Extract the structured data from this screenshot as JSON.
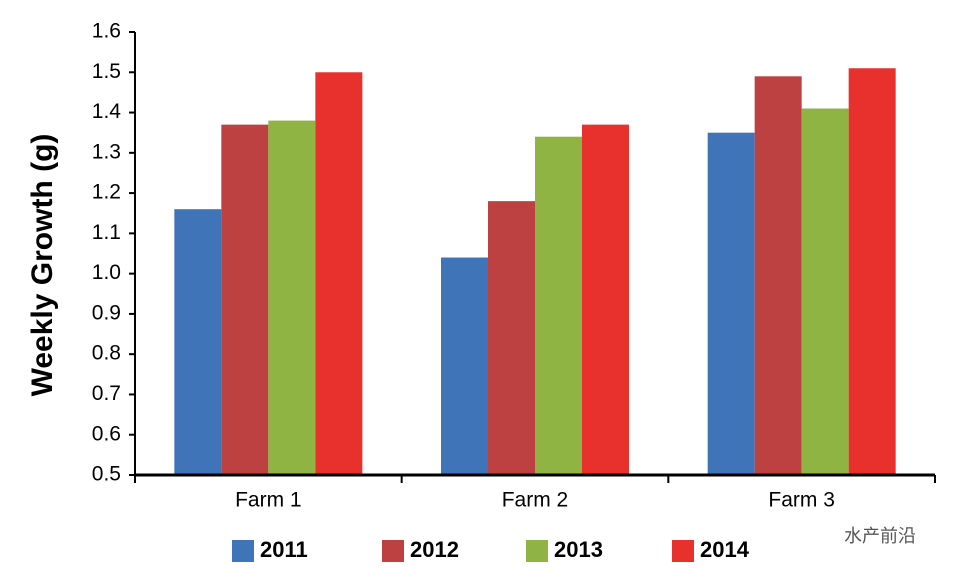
{
  "chart_data": {
    "type": "bar",
    "y_label": "Weekly Growth (g)",
    "categories": [
      "Farm 1",
      "Farm 2",
      "Farm 3"
    ],
    "series": [
      {
        "name": "2011",
        "color": "#3f74b8",
        "values": [
          1.16,
          1.04,
          1.35
        ]
      },
      {
        "name": "2012",
        "color": "#bd4140",
        "values": [
          1.37,
          1.18,
          1.49
        ]
      },
      {
        "name": "2013",
        "color": "#8fb443",
        "values": [
          1.38,
          1.34,
          1.41
        ]
      },
      {
        "name": "2014",
        "color": "#e8302c",
        "values": [
          1.5,
          1.37,
          1.51
        ]
      }
    ],
    "ylim": [
      0.5,
      1.6
    ],
    "yticks": [
      0.5,
      0.6,
      0.7,
      0.8,
      0.9,
      {
        "value": 1,
        "label": "1.0"
      },
      1.1,
      1.2,
      1.3,
      1.4,
      1.5,
      1.6
    ],
    "grid": false,
    "legend": "bottom",
    "watermark": "水产前沿"
  }
}
